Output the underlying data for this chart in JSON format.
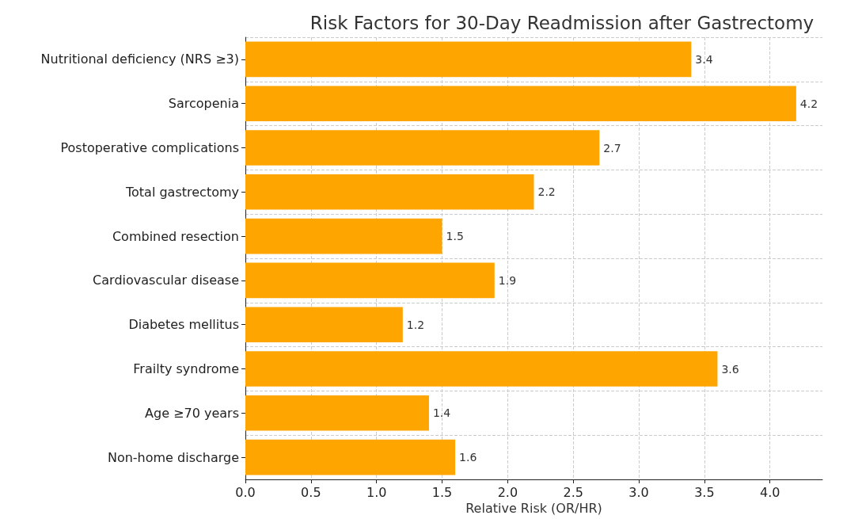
{
  "chart_data": {
    "type": "bar",
    "orientation": "horizontal",
    "title": "Risk Factors for 30-Day Readmission after Gastrectomy",
    "xlabel": "Relative Risk (OR/HR)",
    "categories": [
      "Nutritional deficiency (NRS ≥3)",
      "Sarcopenia",
      "Postoperative complications",
      "Total gastrectomy",
      "Combined resection",
      "Cardiovascular disease",
      "Diabetes mellitus",
      "Frailty syndrome",
      "Age ≥70 years",
      "Non-home discharge"
    ],
    "values": [
      3.4,
      4.2,
      2.7,
      2.2,
      1.5,
      1.9,
      1.2,
      3.6,
      1.4,
      1.6
    ],
    "color": "#ffa500",
    "xlim": [
      0,
      4.4
    ],
    "xticks": [
      {
        "value": 0,
        "label": "0.0"
      },
      0.5,
      {
        "value": 1,
        "label": "1.0"
      },
      1.5,
      {
        "value": 2,
        "label": "2.0"
      },
      2.5,
      {
        "value": 3,
        "label": "3.0"
      },
      3.5,
      {
        "value": 4,
        "label": "4.0"
      }
    ],
    "grid": true,
    "data_labels": true
  }
}
